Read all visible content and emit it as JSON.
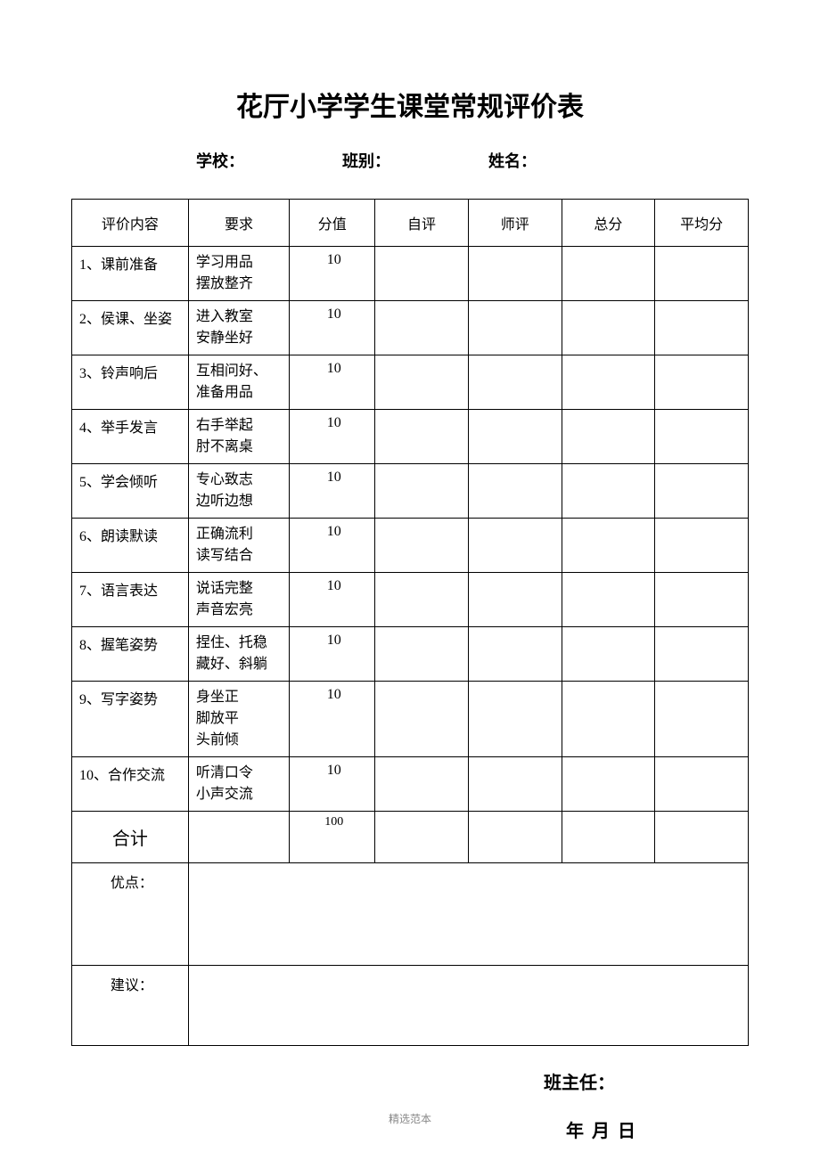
{
  "title": "花厅小学学生课堂常规评价表",
  "info": {
    "school_label": "学校：",
    "class_label": "班别：",
    "name_label": "姓名："
  },
  "table": {
    "headers": {
      "content": "评价内容",
      "requirement": "要求",
      "score": "分值",
      "self": "自评",
      "teacher": "师评",
      "total": "总分",
      "average": "平均分"
    },
    "rows": [
      {
        "content": "1、课前准备",
        "req_line1": "学习用品",
        "req_line2": "摆放整齐",
        "score": "10"
      },
      {
        "content": "2、侯课、坐姿",
        "req_line1": "进入教室",
        "req_line2": "安静坐好",
        "score": "10"
      },
      {
        "content": "3、铃声响后",
        "req_line1": "互相问好、",
        "req_line2": "准备用品",
        "score": "10"
      },
      {
        "content": "4、举手发言",
        "req_line1": "右手举起",
        "req_line2": "肘不离桌",
        "score": "10"
      },
      {
        "content": "5、学会倾听",
        "req_line1": "专心致志",
        "req_line2": "边听边想",
        "score": "10"
      },
      {
        "content": "6、朗读默读",
        "req_line1": "正确流利",
        "req_line2": "读写结合",
        "score": "10"
      },
      {
        "content": "7、语言表达",
        "req_line1": "说话完整",
        "req_line2": "声音宏亮",
        "score": "10"
      },
      {
        "content": "8、握笔姿势",
        "req_line1": "捏住、托稳",
        "req_line2": "藏好、斜躺",
        "score": "10"
      },
      {
        "content": "9、写字姿势",
        "req_line1": "身坐正",
        "req_line2": "脚放平",
        "req_line3": "头前倾",
        "score": "10"
      },
      {
        "content": "10、合作交流",
        "req_line1": "听清口令",
        "req_line2": "小声交流",
        "score": "10"
      }
    ],
    "total_label": "合计",
    "total_score": "100",
    "merit_label": "优点：",
    "suggest_label": "建议："
  },
  "signature": {
    "teacher_label": "班主任：",
    "date_label": "年   月   日"
  },
  "footer": "精选范本"
}
